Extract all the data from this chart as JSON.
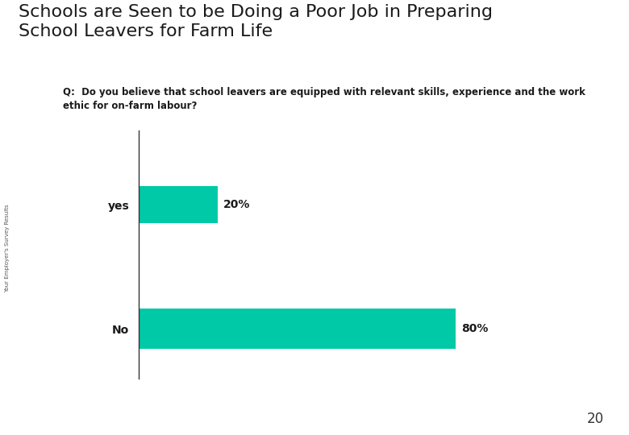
{
  "title_line1": "Schools are Seen to be Doing a Poor Job in Preparing",
  "title_line2": "School Leavers for Farm Life",
  "subtitle": "Q:  Do you believe that school leavers are equipped with relevant skills, experience and the work\nethic for on-farm labour?",
  "categories": [
    "yes",
    "No"
  ],
  "values": [
    20,
    80
  ],
  "bar_color": "#00C9A7",
  "label_color": "#333333",
  "pct_labels": [
    "20%",
    "80%"
  ],
  "teal_line_color": "#008B8B",
  "background_color": "#ffffff",
  "page_number": "20",
  "vertical_label": "Your Employer's Survey Results",
  "xlim": [
    0,
    100
  ]
}
